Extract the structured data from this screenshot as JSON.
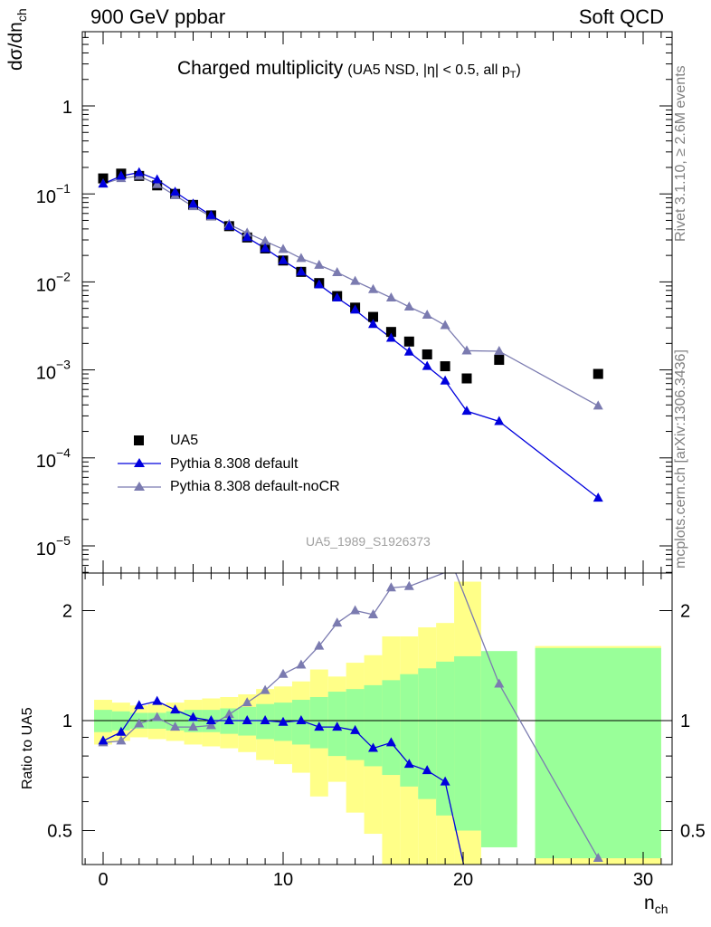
{
  "header": {
    "left": "900 GeV ppbar",
    "right": "Soft QCD"
  },
  "side_text": {
    "rivet": "Rivet 3.1.10, ≥ 2.6M events",
    "mcplots": "mcplots.cern.ch [arXiv:1306.3436]"
  },
  "chart_data": [
    {
      "type": "scatter",
      "title": "Charged multiplicity",
      "title_sub": "(UA5 NSD, |η| < 0.5, all p",
      "title_sub_T": "T",
      "title_sub_end": ")",
      "ylabel": "dσ/dn",
      "ylabel_sub": "ch",
      "y_scale": "log",
      "ylim": [
        5e-06,
        5
      ],
      "xlim": [
        -1,
        31.5
      ],
      "y_tick_labels": [
        {
          "base": "10",
          "exp": "−5"
        },
        {
          "base": "10",
          "exp": "−4"
        },
        {
          "base": "10",
          "exp": "−3"
        },
        {
          "base": "10",
          "exp": "−2"
        },
        {
          "base": "10",
          "exp": "−1"
        },
        {
          "base": "1",
          "exp": ""
        }
      ],
      "watermark": "UA5_1989_S1926373",
      "legend_placement": "lower-left",
      "series": [
        {
          "name": "UA5",
          "style": "square-marker",
          "color": "#000000",
          "x": [
            0,
            1,
            2,
            3,
            4,
            5,
            6,
            7,
            8,
            9,
            10,
            11,
            12,
            13,
            14,
            15,
            16,
            17,
            18,
            19,
            20.2,
            22,
            27.5
          ],
          "y": [
            0.15,
            0.17,
            0.16,
            0.125,
            0.1,
            0.075,
            0.057,
            0.043,
            0.032,
            0.024,
            0.0175,
            0.013,
            0.0097,
            0.0069,
            0.0051,
            0.004,
            0.0027,
            0.0021,
            0.0015,
            0.0011,
            0.0008,
            0.0013,
            0.0009
          ]
        },
        {
          "name": "Pythia 8.308 default",
          "style": "triangle-line",
          "color": "#0000dd",
          "x": [
            0,
            1,
            2,
            3,
            4,
            5,
            6,
            7,
            8,
            9,
            10,
            11,
            12,
            13,
            14,
            15,
            16,
            17,
            18,
            19,
            20.2,
            22,
            27.5
          ],
          "y": [
            0.13,
            0.16,
            0.175,
            0.145,
            0.105,
            0.077,
            0.057,
            0.043,
            0.032,
            0.024,
            0.0175,
            0.013,
            0.0093,
            0.0066,
            0.0048,
            0.0033,
            0.0023,
            0.0016,
            0.0011,
            0.00075,
            0.00034,
            0.00026,
            3.5e-05
          ]
        },
        {
          "name": "Pythia 8.308 default-noCR",
          "style": "triangle-line",
          "color": "#7b7bb0",
          "x": [
            0,
            1,
            2,
            3,
            4,
            5,
            6,
            7,
            8,
            9,
            10,
            11,
            12,
            13,
            14,
            15,
            16,
            17,
            18,
            19,
            20.2,
            22,
            27.5
          ],
          "y": [
            0.13,
            0.15,
            0.16,
            0.128,
            0.096,
            0.072,
            0.055,
            0.045,
            0.036,
            0.029,
            0.0235,
            0.0185,
            0.0155,
            0.0128,
            0.0102,
            0.0082,
            0.0066,
            0.0052,
            0.0042,
            0.0032,
            0.00165,
            0.00163,
            0.00039
          ]
        }
      ]
    },
    {
      "type": "line",
      "ylabel": "Ratio to UA5",
      "xlabel": "n",
      "xlabel_sub": "ch",
      "xlim": [
        -1,
        31.5
      ],
      "ylim": [
        0.35,
        2.3
      ],
      "x_tick_labels": [
        "0",
        "10",
        "20",
        "30"
      ],
      "y_tick_labels": [
        "0.5",
        "1",
        "2"
      ],
      "bands": {
        "bins": [
          [
            -0.5,
            0.5
          ],
          [
            0.5,
            1.5
          ],
          [
            1.5,
            2.5
          ],
          [
            2.5,
            3.5
          ],
          [
            3.5,
            4.5
          ],
          [
            4.5,
            5.5
          ],
          [
            5.5,
            6.5
          ],
          [
            6.5,
            7.5
          ],
          [
            7.5,
            8.5
          ],
          [
            8.5,
            9.5
          ],
          [
            9.5,
            10.5
          ],
          [
            10.5,
            11.5
          ],
          [
            11.5,
            12.5
          ],
          [
            12.5,
            13.5
          ],
          [
            13.5,
            14.5
          ],
          [
            14.5,
            15.5
          ],
          [
            15.5,
            16.5
          ],
          [
            16.5,
            17.5
          ],
          [
            17.5,
            18.5
          ],
          [
            18.5,
            19.5
          ],
          [
            19.5,
            21
          ],
          [
            21,
            23
          ],
          [
            24,
            31
          ]
        ],
        "green_low": [
          0.93,
          0.94,
          0.95,
          0.95,
          0.94,
          0.93,
          0.93,
          0.92,
          0.91,
          0.89,
          0.88,
          0.86,
          0.84,
          0.8,
          0.78,
          0.75,
          0.71,
          0.66,
          0.61,
          0.55,
          0.5,
          0.45,
          0.42
        ],
        "green_high": [
          1.07,
          1.06,
          1.05,
          1.05,
          1.06,
          1.07,
          1.07,
          1.08,
          1.09,
          1.11,
          1.12,
          1.14,
          1.16,
          1.2,
          1.22,
          1.25,
          1.29,
          1.34,
          1.39,
          1.45,
          1.5,
          1.55,
          1.58
        ],
        "yellow_low": [
          0.86,
          0.88,
          0.9,
          0.89,
          0.88,
          0.86,
          0.85,
          0.84,
          0.82,
          0.78,
          0.76,
          0.72,
          0.62,
          0.68,
          0.56,
          0.49,
          0.3,
          0.3,
          0.3,
          0.3,
          0.3,
          0.52,
          0.4
        ],
        "yellow_high": [
          1.14,
          1.12,
          1.1,
          1.11,
          1.12,
          1.14,
          1.15,
          1.16,
          1.18,
          1.22,
          1.24,
          1.28,
          1.38,
          1.32,
          1.44,
          1.51,
          1.7,
          1.7,
          1.8,
          1.85,
          2.4,
          1.48,
          1.6
        ]
      },
      "series": [
        {
          "name": "Pythia 8.308 default",
          "color": "#0000dd",
          "x": [
            0,
            1,
            2,
            3,
            4,
            5,
            6,
            7,
            8,
            9,
            10,
            11,
            12,
            13,
            14,
            15,
            16,
            17,
            18,
            19,
            20.2
          ],
          "y": [
            0.88,
            0.93,
            1.1,
            1.13,
            1.07,
            1.02,
            1.0,
            1.0,
            1.0,
            1.0,
            0.99,
            1.0,
            0.96,
            0.96,
            0.94,
            0.84,
            0.87,
            0.76,
            0.73,
            0.68,
            0.37
          ]
        },
        {
          "name": "Pythia 8.308 default-noCR",
          "color": "#7b7bb0",
          "x": [
            0,
            1,
            2,
            3,
            4,
            5,
            6,
            7,
            8,
            9,
            10,
            11,
            12,
            13,
            14,
            15,
            16,
            17,
            19.5,
            22,
            27.5
          ],
          "y": [
            0.87,
            0.88,
            0.98,
            1.02,
            0.96,
            0.96,
            0.97,
            1.04,
            1.12,
            1.21,
            1.34,
            1.42,
            1.6,
            1.85,
            2.0,
            1.95,
            2.31,
            2.33,
            2.6,
            1.26,
            0.42
          ]
        }
      ]
    }
  ]
}
